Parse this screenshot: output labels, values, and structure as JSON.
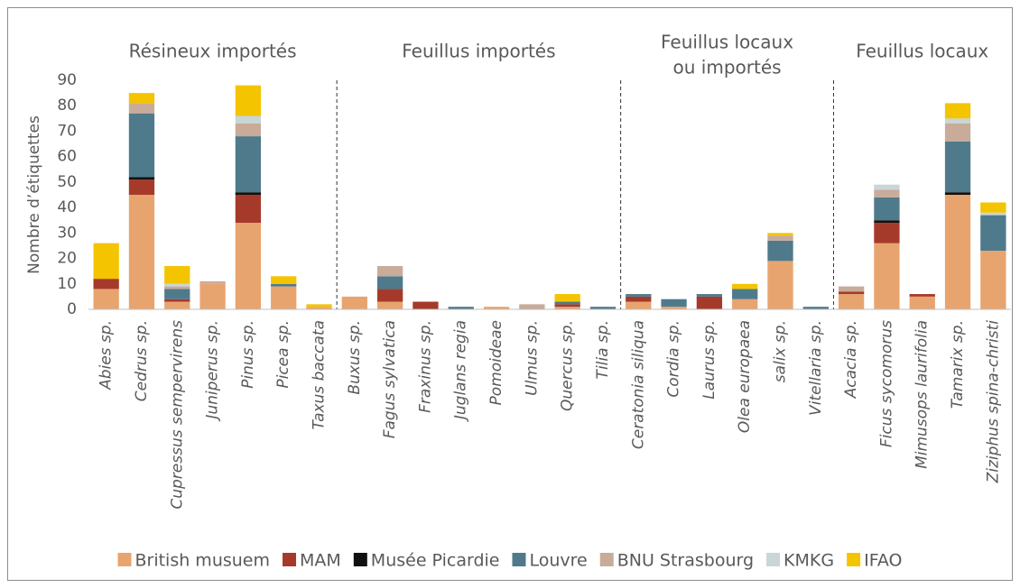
{
  "chart_data": {
    "type": "bar",
    "stacked": true,
    "ylabel": "Nombre d’étiquettes",
    "groups": [
      {
        "label": [
          "Résineux importés"
        ],
        "size": 7
      },
      {
        "label": [
          "Feuillus importés"
        ],
        "size": 8
      },
      {
        "label": [
          "Feuillus locaux",
          "ou importés"
        ],
        "size": 6
      },
      {
        "label": [
          "Feuillus locaux"
        ],
        "size": 5
      }
    ],
    "categories": [
      "Abies sp.",
      "Cedrus sp.",
      "Cupressus sempervirens",
      "Juniperus sp.",
      "Pinus sp.",
      "Picea sp.",
      "Taxus baccata",
      "Buxus sp.",
      "Fagus sylvatica",
      "Fraxinus sp.",
      "Juglans regia",
      "Pomoideae",
      "Ulmus sp.",
      "Quercus sp.",
      "Tilia sp.",
      "Ceratonia siliqua",
      "Cordia sp.",
      "Laurus sp.",
      "Olea europaea",
      "salix sp.",
      "Vitellaria sp.",
      "Acacia sp.",
      "Ficus sycomorus",
      "Mimusops laurifolia",
      "Tamarix sp.",
      "Ziziphus spina-christi"
    ],
    "series": [
      {
        "name": "British musuem",
        "color": "#e8a46f",
        "values": [
          8,
          45,
          3,
          10,
          34,
          9,
          1,
          5,
          3,
          0,
          0,
          1,
          0,
          1,
          0,
          3,
          1,
          0,
          4,
          19,
          0,
          6,
          26,
          5,
          45,
          23
        ]
      },
      {
        "name": "MAM",
        "color": "#a63a2a",
        "values": [
          4,
          6,
          1,
          0,
          11,
          0,
          0,
          0,
          5,
          3,
          0,
          0,
          0,
          1,
          0,
          2,
          0,
          5,
          0,
          0,
          0,
          1,
          8,
          1,
          0,
          0
        ]
      },
      {
        "name": "Musée Picardie",
        "color": "#111111",
        "values": [
          0,
          1,
          0,
          0,
          1,
          0,
          0,
          0,
          0,
          0,
          0,
          0,
          0,
          0,
          0,
          0,
          0,
          0,
          0,
          0,
          0,
          0,
          1,
          0,
          1,
          0
        ]
      },
      {
        "name": "Louvre",
        "color": "#4f7a8c",
        "values": [
          0,
          25,
          4,
          0,
          22,
          1,
          0,
          0,
          5,
          0,
          1,
          0,
          0,
          1,
          1,
          1,
          3,
          1,
          4,
          8,
          1,
          0,
          9,
          0,
          20,
          14
        ]
      },
      {
        "name": "BNU Strasbourg",
        "color": "#c9ab9a",
        "values": [
          0,
          4,
          1,
          1,
          5,
          0,
          0,
          0,
          4,
          0,
          0,
          0,
          2,
          0,
          0,
          0,
          0,
          0,
          0,
          2,
          0,
          2,
          3,
          0,
          7,
          0
        ]
      },
      {
        "name": "KMKG",
        "color": "#c8d6d6",
        "values": [
          0,
          0,
          1,
          0,
          3,
          0,
          0,
          0,
          0,
          0,
          0,
          0,
          0,
          0,
          0,
          0,
          0,
          0,
          0,
          0,
          0,
          0,
          2,
          0,
          2,
          1
        ]
      },
      {
        "name": "IFAO",
        "color": "#f5c400",
        "values": [
          14,
          4,
          7,
          0,
          12,
          3,
          1,
          0,
          0,
          0,
          0,
          0,
          0,
          3,
          0,
          0,
          0,
          0,
          2,
          1,
          0,
          0,
          0,
          0,
          6,
          4
        ]
      }
    ],
    "ylim": [
      0,
      90
    ],
    "yticks": [
      0,
      10,
      20,
      30,
      40,
      50,
      60,
      70,
      80,
      90
    ],
    "grid": false,
    "legend": "bottom"
  }
}
